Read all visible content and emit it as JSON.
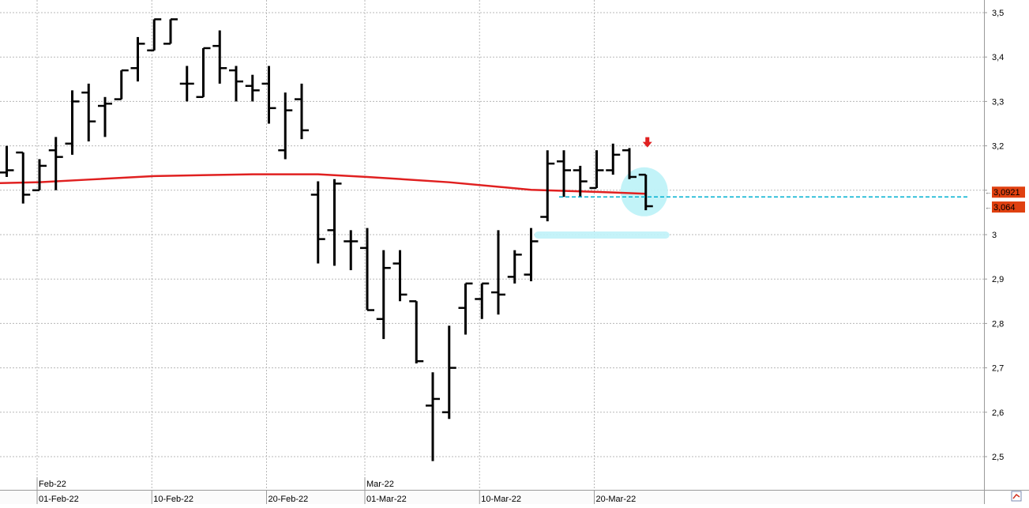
{
  "chart_data": {
    "type": "ohlc",
    "title": "",
    "xlabel": "",
    "ylabel": "",
    "ylim": [
      2.43,
      3.53
    ],
    "y_ticks": [
      "3,5",
      "3,4",
      "3,3",
      "3,2",
      "3,1",
      "3",
      "2,9",
      "2,8",
      "2,7",
      "2,6",
      "2,5"
    ],
    "y_tick_values": [
      3.5,
      3.4,
      3.3,
      3.2,
      3.1,
      3.0,
      2.9,
      2.8,
      2.7,
      2.6,
      2.5
    ],
    "grid": true,
    "x_date_labels": [
      "01-Feb-22",
      "10-Feb-22",
      "20-Feb-22",
      "01-Mar-22",
      "10-Mar-22",
      "20-Mar-22"
    ],
    "month_labels": [
      "Feb-22",
      "Mar-22"
    ],
    "bars": [
      {
        "date": "2022-01-28",
        "open": 3.14,
        "high": 3.2,
        "low": 3.13,
        "close": 3.145
      },
      {
        "date": "2022-01-31",
        "open": 3.185,
        "high": 3.185,
        "low": 3.07,
        "close": 3.09
      },
      {
        "date": "2022-02-01",
        "open": 3.1,
        "high": 3.17,
        "low": 3.1,
        "close": 3.155
      },
      {
        "date": "2022-02-02",
        "open": 3.19,
        "high": 3.22,
        "low": 3.1,
        "close": 3.175
      },
      {
        "date": "2022-02-03",
        "open": 3.205,
        "high": 3.325,
        "low": 3.18,
        "close": 3.3
      },
      {
        "date": "2022-02-04",
        "open": 3.32,
        "high": 3.34,
        "low": 3.21,
        "close": 3.255
      },
      {
        "date": "2022-02-07",
        "open": 3.29,
        "high": 3.31,
        "low": 3.22,
        "close": 3.295
      },
      {
        "date": "2022-02-08",
        "open": 3.305,
        "high": 3.37,
        "low": 3.305,
        "close": 3.37
      },
      {
        "date": "2022-02-09",
        "open": 3.375,
        "high": 3.445,
        "low": 3.345,
        "close": 3.43
      },
      {
        "date": "2022-02-10",
        "open": 3.415,
        "high": 3.485,
        "low": 3.415,
        "close": 3.485
      },
      {
        "date": "2022-02-11",
        "open": 3.43,
        "high": 3.485,
        "low": 3.43,
        "close": 3.485
      },
      {
        "date": "2022-02-14",
        "open": 3.34,
        "high": 3.38,
        "low": 3.3,
        "close": 3.34
      },
      {
        "date": "2022-02-15",
        "open": 3.31,
        "high": 3.42,
        "low": 3.31,
        "close": 3.42
      },
      {
        "date": "2022-02-16",
        "open": 3.425,
        "high": 3.46,
        "low": 3.34,
        "close": 3.375
      },
      {
        "date": "2022-02-17",
        "open": 3.37,
        "high": 3.38,
        "low": 3.3,
        "close": 3.345
      },
      {
        "date": "2022-02-18",
        "open": 3.335,
        "high": 3.36,
        "low": 3.3,
        "close": 3.325
      },
      {
        "date": "2022-02-21",
        "open": 3.34,
        "high": 3.38,
        "low": 3.25,
        "close": 3.285
      },
      {
        "date": "2022-02-22",
        "open": 3.19,
        "high": 3.32,
        "low": 3.17,
        "close": 3.28
      },
      {
        "date": "2022-02-23",
        "open": 3.305,
        "high": 3.34,
        "low": 3.215,
        "close": 3.235
      },
      {
        "date": "2022-02-24",
        "open": 3.09,
        "high": 3.12,
        "low": 2.935,
        "close": 2.99
      },
      {
        "date": "2022-02-25",
        "open": 3.01,
        "high": 3.125,
        "low": 2.93,
        "close": 3.115
      },
      {
        "date": "2022-02-28",
        "open": 2.985,
        "high": 3.01,
        "low": 2.92,
        "close": 2.985
      },
      {
        "date": "2022-03-01",
        "open": 2.97,
        "high": 3.015,
        "low": 2.83,
        "close": 2.83
      },
      {
        "date": "2022-03-02",
        "open": 2.81,
        "high": 2.965,
        "low": 2.765,
        "close": 2.925
      },
      {
        "date": "2022-03-03",
        "open": 2.935,
        "high": 2.965,
        "low": 2.85,
        "close": 2.865
      },
      {
        "date": "2022-03-04",
        "open": 2.85,
        "high": 2.85,
        "low": 2.71,
        "close": 2.715
      },
      {
        "date": "2022-03-07",
        "open": 2.615,
        "high": 2.69,
        "low": 2.49,
        "close": 2.63
      },
      {
        "date": "2022-03-08",
        "open": 2.6,
        "high": 2.795,
        "low": 2.585,
        "close": 2.7
      },
      {
        "date": "2022-03-09",
        "open": 2.835,
        "high": 2.89,
        "low": 2.775,
        "close": 2.89
      },
      {
        "date": "2022-03-10",
        "open": 2.855,
        "high": 2.89,
        "low": 2.81,
        "close": 2.89
      },
      {
        "date": "2022-03-11",
        "open": 2.87,
        "high": 3.01,
        "low": 2.82,
        "close": 2.865
      },
      {
        "date": "2022-03-14",
        "open": 2.905,
        "high": 2.965,
        "low": 2.89,
        "close": 2.955
      },
      {
        "date": "2022-03-15",
        "open": 2.91,
        "high": 3.015,
        "low": 2.895,
        "close": 2.985
      },
      {
        "date": "2022-03-16",
        "open": 3.04,
        "high": 3.19,
        "low": 3.03,
        "close": 3.16
      },
      {
        "date": "2022-03-17",
        "open": 3.165,
        "high": 3.19,
        "low": 3.085,
        "close": 3.145
      },
      {
        "date": "2022-03-18",
        "open": 3.145,
        "high": 3.155,
        "low": 3.085,
        "close": 3.12
      },
      {
        "date": "2022-03-21",
        "open": 3.105,
        "high": 3.19,
        "low": 3.105,
        "close": 3.145
      },
      {
        "date": "2022-03-22",
        "open": 3.145,
        "high": 3.205,
        "low": 3.135,
        "close": 3.18
      },
      {
        "date": "2022-03-23",
        "open": 3.19,
        "high": 3.195,
        "low": 3.125,
        "close": 3.13
      },
      {
        "date": "2022-03-24",
        "open": 3.135,
        "high": 3.135,
        "low": 3.055,
        "close": 3.064
      }
    ],
    "moving_average": {
      "color": "#e02020",
      "points": [
        {
          "date": "2022-01-28",
          "value": 3.116
        },
        {
          "date": "2022-02-01",
          "value": 3.118
        },
        {
          "date": "2022-02-04",
          "value": 3.124
        },
        {
          "date": "2022-02-10",
          "value": 3.132
        },
        {
          "date": "2022-02-18",
          "value": 3.136
        },
        {
          "date": "2022-02-24",
          "value": 3.136
        },
        {
          "date": "2022-03-01",
          "value": 3.13
        },
        {
          "date": "2022-03-08",
          "value": 3.118
        },
        {
          "date": "2022-03-15",
          "value": 3.101
        },
        {
          "date": "2022-03-22",
          "value": 3.095
        },
        {
          "date": "2022-03-24",
          "value": 3.0921
        }
      ]
    },
    "price_tags": [
      {
        "label": "3,0921",
        "value": 3.0921,
        "color": "#e04010"
      },
      {
        "label": "3,064",
        "value": 3.064,
        "color": "#e04010"
      }
    ],
    "dashed_level": {
      "value": 3.085,
      "from_date": "2022-03-17",
      "to_date": "2022-03-24",
      "color": "#00b0d0"
    },
    "highlight_band": {
      "value": 3.0,
      "from_date": "2022-03-15",
      "to_date": "2022-03-24",
      "color": "#bff2f8"
    },
    "highlight_circle": {
      "date": "2022-03-24",
      "value": 3.1,
      "color": "#bff2f8"
    },
    "signal_arrow": {
      "date": "2022-03-24",
      "value": 3.2,
      "direction": "down",
      "color": "#e02020"
    }
  }
}
